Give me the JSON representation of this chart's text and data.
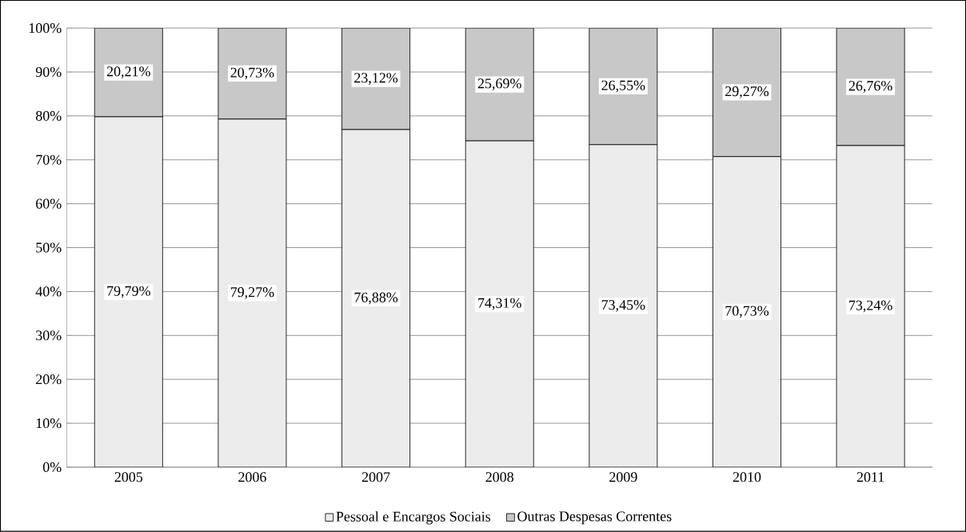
{
  "chart_data": {
    "type": "bar",
    "stacked": true,
    "categories": [
      "2005",
      "2006",
      "2007",
      "2008",
      "2009",
      "2010",
      "2011"
    ],
    "series": [
      {
        "name": "Pessoal e Encargos Sociais",
        "color": "#ececec",
        "values": [
          79.79,
          79.27,
          76.88,
          74.31,
          73.45,
          70.73,
          73.24
        ],
        "value_labels": [
          "79,79%",
          "79,27%",
          "76,88%",
          "74,31%",
          "73,45%",
          "70,73%",
          "73,24%"
        ]
      },
      {
        "name": "Outras Despesas Correntes",
        "color": "#c8c8c8",
        "values": [
          20.21,
          20.73,
          23.12,
          25.69,
          26.55,
          29.27,
          26.76
        ],
        "value_labels": [
          "20,21%",
          "20,73%",
          "23,12%",
          "25,69%",
          "26,55%",
          "29,27%",
          "26,76%"
        ]
      }
    ],
    "ylim": [
      0,
      100
    ],
    "yticks": [
      {
        "value": 0,
        "label": "0%"
      },
      {
        "value": 10,
        "label": "10%"
      },
      {
        "value": 20,
        "label": "20%"
      },
      {
        "value": 30,
        "label": "30%"
      },
      {
        "value": 40,
        "label": "40%"
      },
      {
        "value": 50,
        "label": "50%"
      },
      {
        "value": 60,
        "label": "60%"
      },
      {
        "value": 70,
        "label": "70%"
      },
      {
        "value": 80,
        "label": "80%"
      },
      {
        "value": 90,
        "label": "90%"
      },
      {
        "value": 100,
        "label": "100%"
      }
    ],
    "grid": "y",
    "legend": "bottom"
  }
}
